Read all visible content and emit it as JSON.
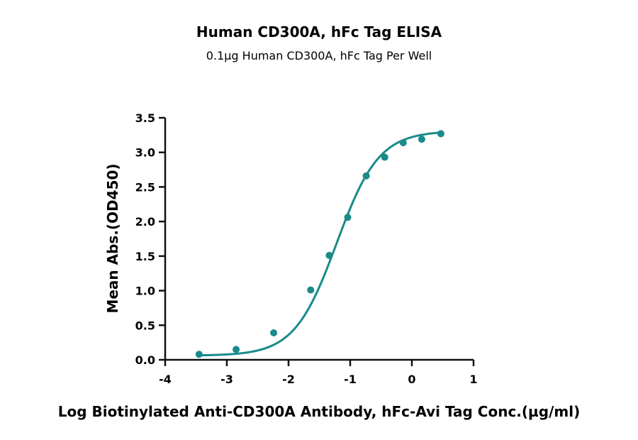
{
  "chart_data": {
    "type": "scatter",
    "title": "Human CD300A, hFc Tag ELISA",
    "subtitle": "0.1µg Human CD300A, hFc Tag Per Well",
    "xlabel": "Log Biotinylated Anti-CD300A Antibody, hFc-Avi Tag Conc.(µg/ml)",
    "ylabel": "Mean Abs.(OD450)",
    "xlim": [
      -4,
      1
    ],
    "ylim": [
      0,
      3.5
    ],
    "x_ticks": [
      "-4",
      "-3",
      "-2",
      "-1",
      "0",
      "1"
    ],
    "y_ticks": [
      "0.0",
      "0.5",
      "1.0",
      "1.5",
      "2.0",
      "2.5",
      "3.0",
      "3.5"
    ],
    "grid": false,
    "legend": "none",
    "color": "#1a8a8a",
    "series": [
      {
        "x": [
          -3.45,
          -2.85,
          -2.24,
          -1.64,
          -1.34,
          -1.04,
          -0.74,
          -0.44,
          -0.14,
          0.16,
          0.47
        ],
        "y": [
          0.08,
          0.15,
          0.39,
          1.01,
          1.51,
          2.06,
          2.66,
          2.93,
          3.14,
          3.19,
          3.27
        ]
      }
    ],
    "fit_curve": {
      "model": "4PL",
      "bottom": 0.06,
      "top": 3.31,
      "log_ec50": -1.22,
      "hill": 1.27
    }
  }
}
